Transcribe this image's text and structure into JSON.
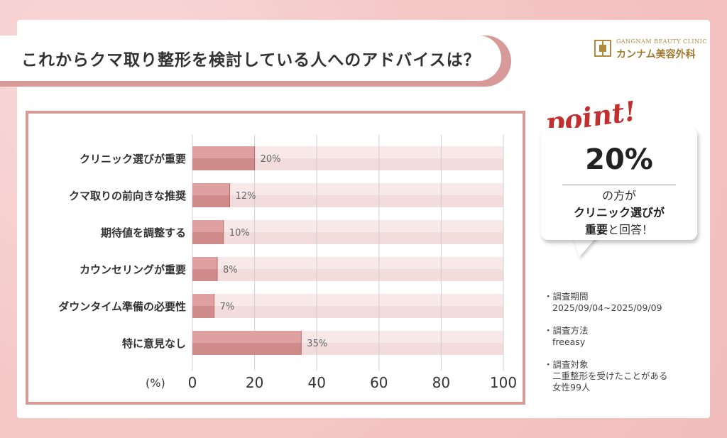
{
  "title": "これからクマ取り整形を検討している人へのアドバイスは？",
  "logo": {
    "en": "GANGNAM BEAUTY CLINIC",
    "ja": "カンナム美容外科"
  },
  "chart_data": {
    "type": "bar",
    "orientation": "horizontal",
    "categories": [
      "クリニック選びが重要",
      "クマ取りの前向きな推奨",
      "期待値を調整する",
      "カウンセリングが重要",
      "ダウンタイム準備の必要性",
      "特に意見なし"
    ],
    "values": [
      20,
      12,
      10,
      8,
      7,
      35
    ],
    "value_labels": [
      "20%",
      "12%",
      "10%",
      "8%",
      "7%",
      "35%"
    ],
    "xlabel": "(%)",
    "xlim": [
      0,
      100
    ],
    "xticks": [
      "0",
      "20",
      "40",
      "60",
      "80",
      "100"
    ],
    "grid": true,
    "colors": {
      "bar": "#dea0a0",
      "bar_dark": "#cf8a8a",
      "track": "#f8e8e8"
    }
  },
  "point": {
    "word": "point!",
    "value": "20%",
    "line1": "の方が",
    "line2": "クリニック選びが",
    "line3_bold": "重要",
    "line3_rest": "と回答！"
  },
  "survey": [
    {
      "label": "・調査期間",
      "value": "2025/09/04~2025/09/09"
    },
    {
      "label": "・調査方法",
      "value": "freeasy"
    },
    {
      "label": "・調査対象",
      "value": "二重整形を受けたことがある",
      "value2": "女性99人"
    }
  ]
}
